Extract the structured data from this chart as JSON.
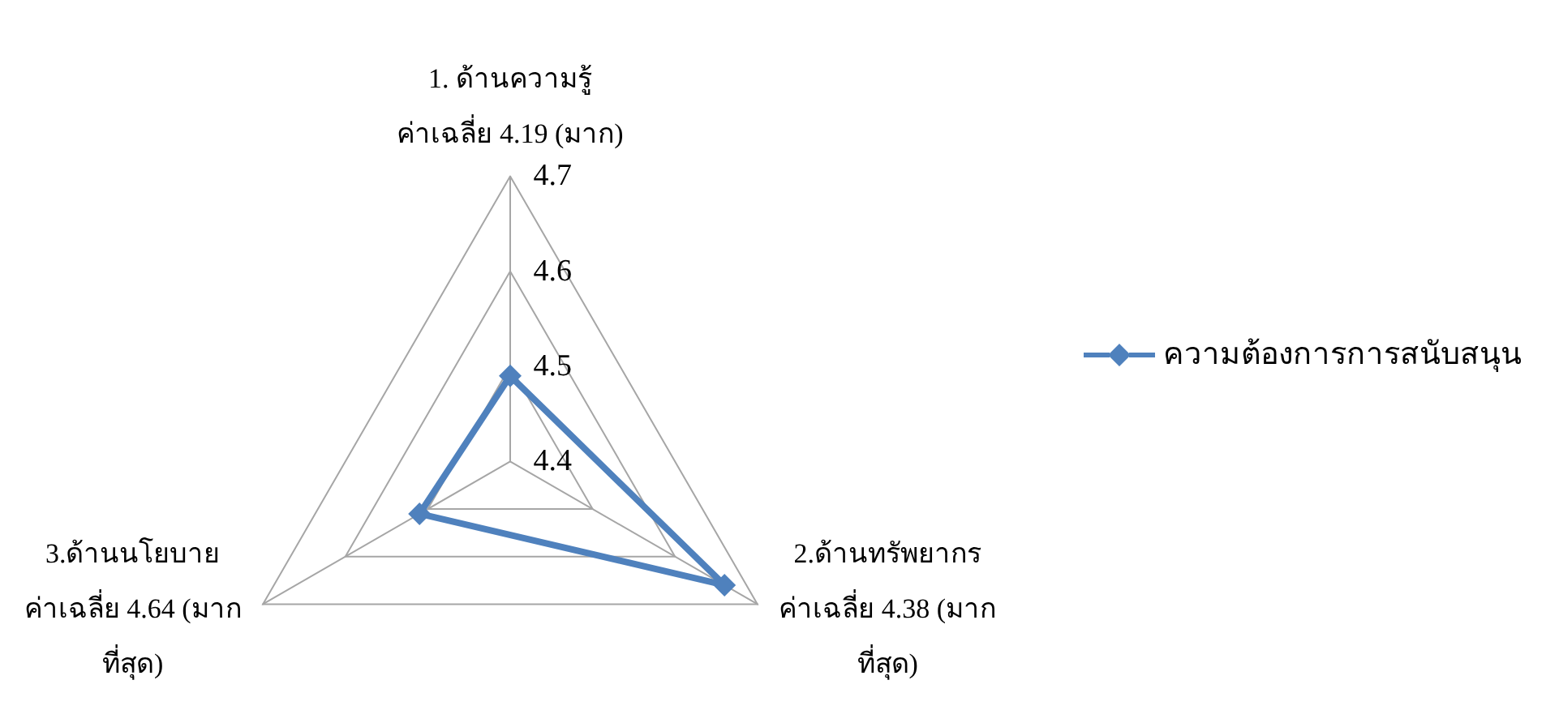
{
  "chart_data": {
    "type": "radar",
    "categories": [
      "1. ด้านความรู้\nค่าเฉลี่ย 4.19 (มาก)",
      "2.ด้านทรัพยากร\nค่าเฉลี่ย 4.38 (มาก\nที่สุด)",
      "3.ด้านนโยบาย\nค่าเฉลี่ย 4.64 (มาก\nที่สุด)"
    ],
    "series": [
      {
        "name": "ความต้องการการสนับสนุน",
        "color": "#4f81bd",
        "values": [
          4.49,
          4.66,
          4.51
        ]
      }
    ],
    "ylim": [
      4.4,
      4.7
    ],
    "yticks": [
      4.4,
      4.5,
      4.6,
      4.7
    ],
    "legend": "right",
    "marker": "diamond",
    "line_style": "solid"
  }
}
